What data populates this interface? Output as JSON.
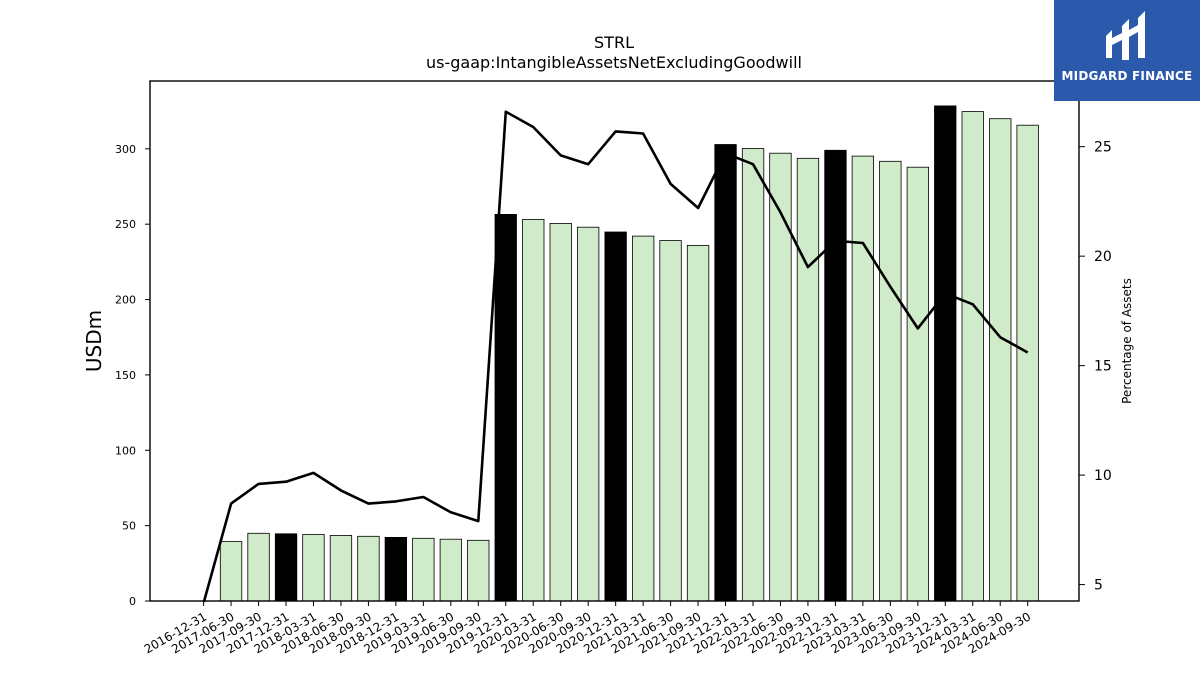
{
  "logo": {
    "text": "MIDGARD FINANCE"
  },
  "chart_data": {
    "type": "bar",
    "title": "STRL",
    "subtitle": "us-gaap:IntangibleAssetsNetExcludingGoodwill",
    "ylabel": "USDm",
    "y2label": "Percentage of Assets",
    "ylim": [
      0,
      345
    ],
    "y2lim": [
      4.25,
      28.0
    ],
    "yticks": [
      0,
      50,
      100,
      150,
      200,
      250,
      300
    ],
    "y2ticks": [
      5,
      10,
      15,
      20,
      25
    ],
    "grid": false,
    "categories": [
      "2016-12-31",
      "2017-06-30",
      "2017-09-30",
      "2017-12-31",
      "2018-03-31",
      "2018-06-30",
      "2018-09-30",
      "2018-12-31",
      "2019-03-31",
      "2019-06-30",
      "2019-09-30",
      "2019-12-31",
      "2020-03-31",
      "2020-06-30",
      "2020-09-30",
      "2020-12-31",
      "2021-03-31",
      "2021-06-30",
      "2021-09-30",
      "2021-12-31",
      "2022-03-31",
      "2022-06-30",
      "2022-09-30",
      "2022-12-31",
      "2023-03-31",
      "2023-06-30",
      "2023-09-30",
      "2023-12-31",
      "2024-03-31",
      "2024-06-30",
      "2024-09-30"
    ],
    "series": [
      {
        "type": "bar",
        "values": [
          0,
          39.5,
          44.9,
          44.6,
          44.1,
          43.5,
          42.9,
          42.2,
          41.6,
          41.0,
          40.3,
          256.5,
          253.2,
          250.5,
          248.0,
          244.8,
          242.1,
          239.1,
          235.9,
          302.9,
          300.2,
          297.1,
          293.7,
          299.0,
          295.2,
          291.7,
          287.8,
          328.5,
          324.7,
          320.0,
          315.7
        ],
        "colors": [
          "#000000",
          "#d0ebc9",
          "#d0ebc9",
          "#000000",
          "#d0ebc9",
          "#d0ebc9",
          "#d0ebc9",
          "#000000",
          "#d0ebc9",
          "#d0ebc9",
          "#d0ebc9",
          "#000000",
          "#d0ebc9",
          "#d0ebc9",
          "#d0ebc9",
          "#000000",
          "#d0ebc9",
          "#d0ebc9",
          "#d0ebc9",
          "#000000",
          "#d0ebc9",
          "#d0ebc9",
          "#d0ebc9",
          "#000000",
          "#d0ebc9",
          "#d0ebc9",
          "#d0ebc9",
          "#000000",
          "#d0ebc9",
          "#d0ebc9",
          "#d0ebc9"
        ]
      },
      {
        "type": "line",
        "axis": "right",
        "color": "#000000",
        "values": [
          0,
          8.7,
          9.6,
          9.7,
          10.1,
          9.3,
          8.7,
          8.8,
          9.0,
          8.3,
          7.9,
          26.6,
          25.9,
          24.6,
          24.2,
          25.7,
          25.6,
          23.3,
          22.2,
          24.7,
          24.2,
          22.0,
          19.5,
          20.7,
          20.6,
          18.6,
          16.7,
          18.3,
          17.8,
          16.3,
          15.6
        ]
      }
    ]
  }
}
